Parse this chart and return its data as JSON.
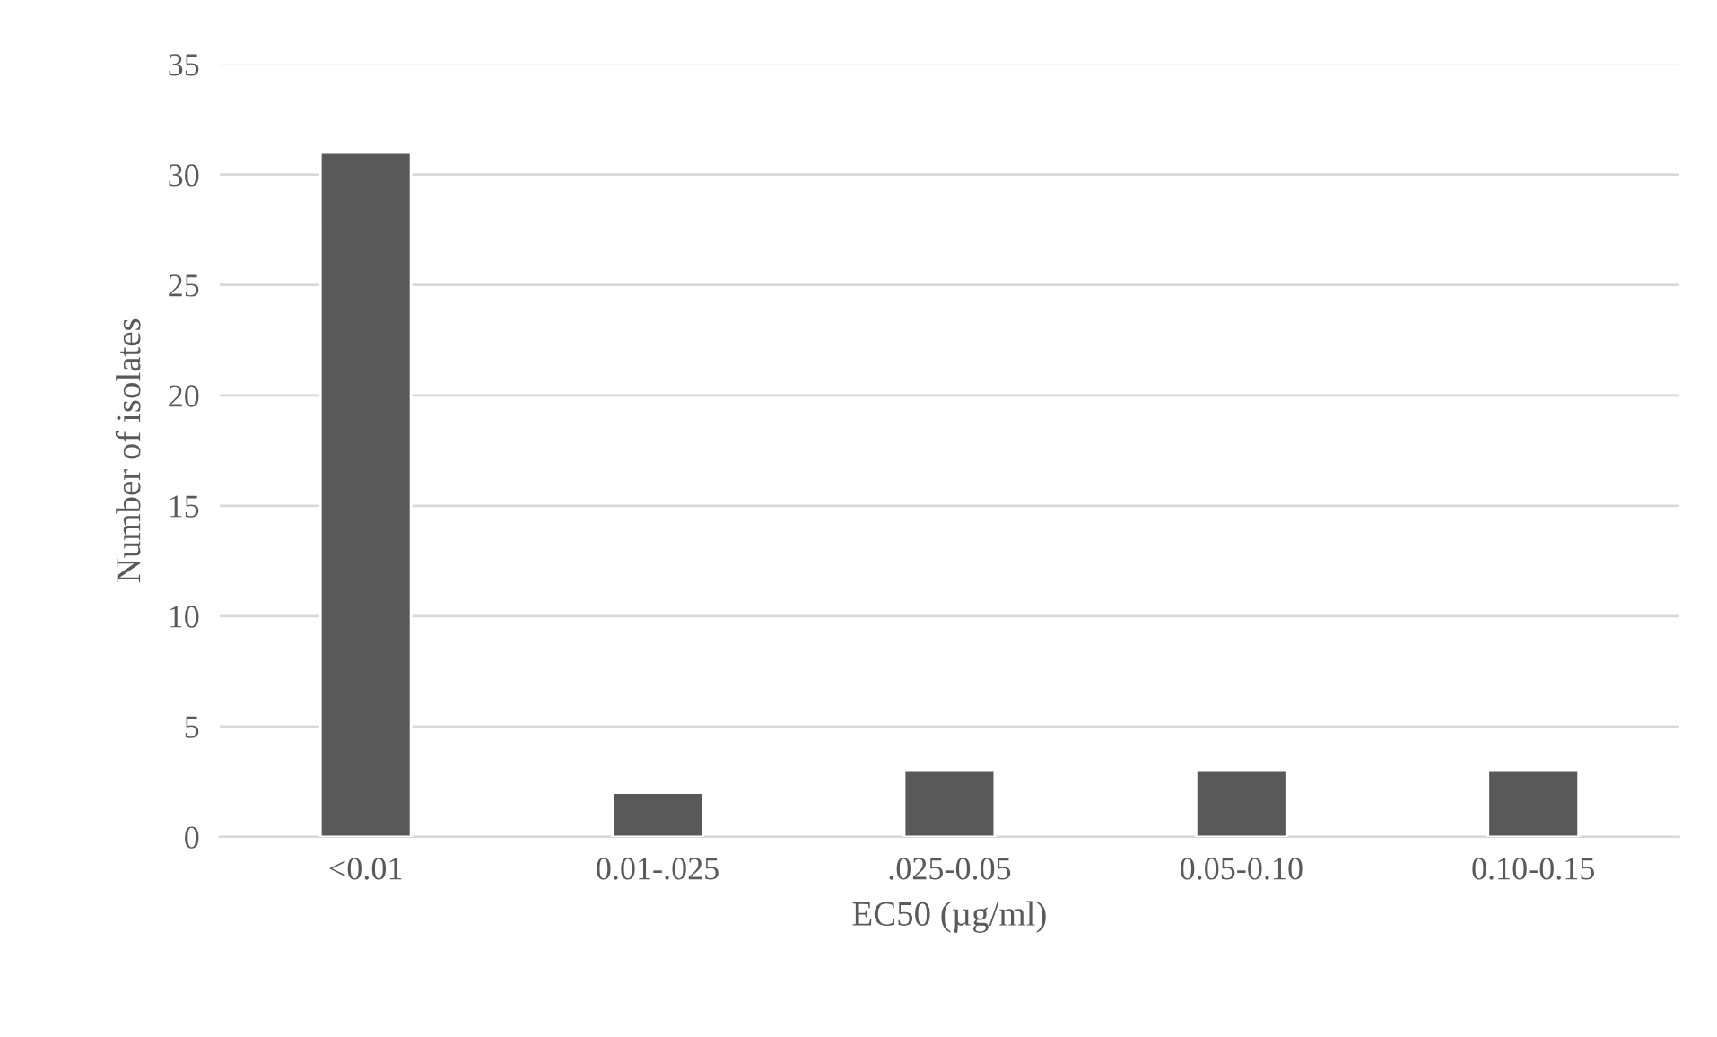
{
  "chart_data": {
    "type": "bar",
    "xlabel": "EC50 (µg/ml)",
    "ylabel": "Number of isolates",
    "categories": [
      "<0.01",
      "0.01-.025",
      ".025-0.05",
      "0.05-0.10",
      "0.10-0.15"
    ],
    "values": [
      31,
      2,
      3,
      3,
      3
    ],
    "color": "#595959",
    "ylim": [
      0,
      35
    ],
    "yticks": [
      0,
      5,
      10,
      15,
      20,
      25,
      30,
      35
    ],
    "grid": "y",
    "legend": false
  }
}
